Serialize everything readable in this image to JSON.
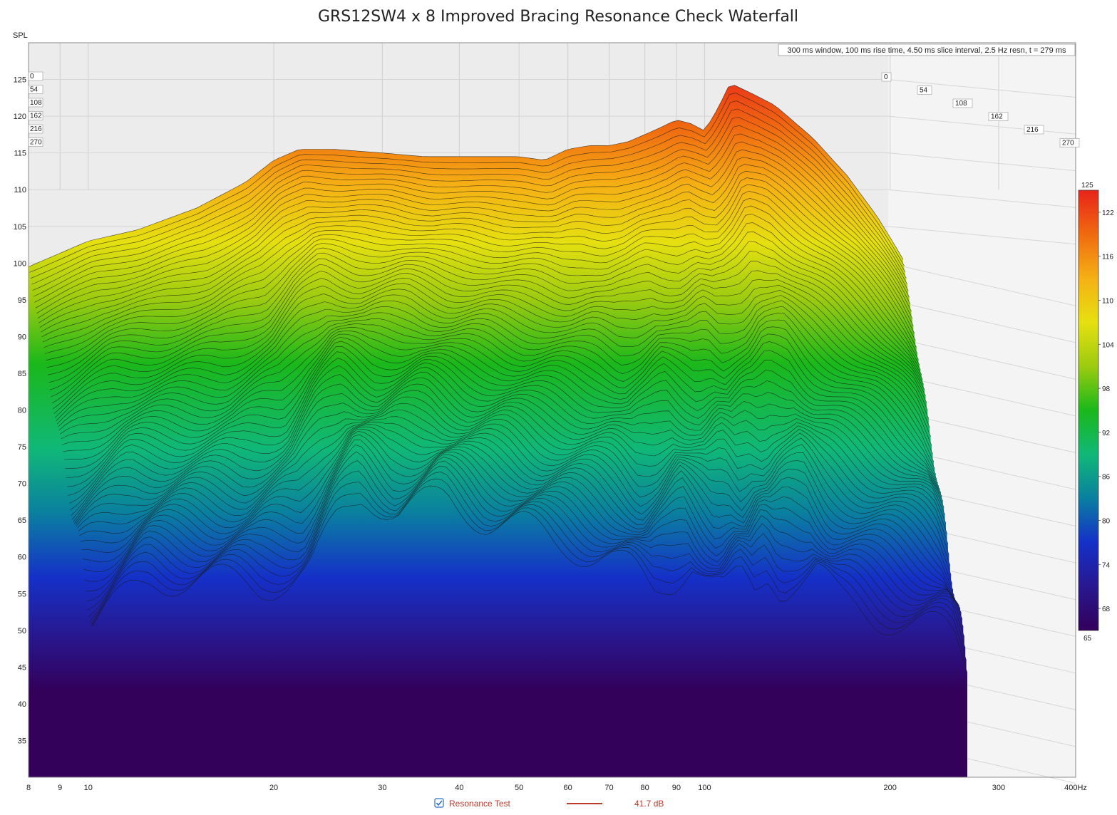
{
  "chart_data": {
    "type": "waterfall",
    "title": "GRS12SW4 x 8 Improved Bracing Resonance Check Waterfall",
    "ylabel": "SPL",
    "xunit": "Hz",
    "info_text": "300 ms window, 100 ms rise time, 4.50 ms slice interval, 2.5 Hz resn, t = 279 ms",
    "x_scale": "log",
    "xlim": [
      8,
      400
    ],
    "ylim": [
      30,
      130
    ],
    "x_ticks": [
      {
        "value": 8,
        "label": "8"
      },
      {
        "value": 9,
        "label": "9"
      },
      {
        "value": 10,
        "label": "10"
      },
      {
        "value": 20,
        "label": "20"
      },
      {
        "value": 30,
        "label": "30"
      },
      {
        "value": 40,
        "label": "40"
      },
      {
        "value": 50,
        "label": "50"
      },
      {
        "value": 60,
        "label": "60"
      },
      {
        "value": 70,
        "label": "70"
      },
      {
        "value": 80,
        "label": "80"
      },
      {
        "value": 90,
        "label": "90"
      },
      {
        "value": 100,
        "label": "100"
      },
      {
        "value": 200,
        "label": "200"
      },
      {
        "value": 300,
        "label": "300"
      },
      {
        "value": 400,
        "label": "400Hz"
      }
    ],
    "y_ticks": [
      {
        "value": 125,
        "label": "125"
      },
      {
        "value": 120,
        "label": "120"
      },
      {
        "value": 115,
        "label": "115"
      },
      {
        "value": 110,
        "label": "110"
      },
      {
        "value": 105,
        "label": "105"
      },
      {
        "value": 100,
        "label": "100"
      },
      {
        "value": 95,
        "label": "95"
      },
      {
        "value": 90,
        "label": "90"
      },
      {
        "value": 85,
        "label": "85"
      },
      {
        "value": 80,
        "label": "80"
      },
      {
        "value": 75,
        "label": "75"
      },
      {
        "value": 70,
        "label": "70"
      },
      {
        "value": 65,
        "label": "65"
      },
      {
        "value": 60,
        "label": "60"
      },
      {
        "value": 55,
        "label": "55"
      },
      {
        "value": 50,
        "label": "50"
      },
      {
        "value": 45,
        "label": "45"
      },
      {
        "value": 40,
        "label": "40"
      },
      {
        "value": 35,
        "label": "35"
      }
    ],
    "time_ticks_ms": [
      "0",
      "54",
      "108",
      "162",
      "216",
      "270"
    ],
    "colorbar": {
      "max_label": "125",
      "min_label": "65",
      "ticks": [
        "122",
        "116",
        "110",
        "104",
        "98",
        "92",
        "86",
        "80",
        "74",
        "68"
      ],
      "stops": [
        "#e8231a",
        "#f06a10",
        "#f5b014",
        "#e6e010",
        "#9ccb10",
        "#1ab81a",
        "#10b878",
        "#0a7fa0",
        "#1530c8",
        "#281890",
        "#33005a"
      ]
    },
    "series": [
      {
        "name": "Resonance Test",
        "value_label": "41.7 dB",
        "color": "#c0392b",
        "frequency_hz": [
          8,
          10,
          12,
          15,
          18,
          20,
          22,
          25,
          30,
          35,
          40,
          45,
          50,
          55,
          60,
          65,
          70,
          75,
          80,
          85,
          90,
          95,
          100,
          105,
          110,
          120,
          130,
          150,
          170,
          190,
          200,
          210
        ],
        "spl_first_slice_db": [
          99.5,
          103,
          104.5,
          107.5,
          111,
          114,
          115.5,
          115.5,
          115,
          114.5,
          114.5,
          114.5,
          114.5,
          114,
          115.5,
          116,
          116,
          116.5,
          117.5,
          118.5,
          119.5,
          119,
          118,
          121,
          124.5,
          123,
          121.5,
          117,
          112,
          106.5,
          103.5,
          100.5
        ],
        "spl_last_slice_db": [
          51,
          57,
          57,
          56,
          58,
          65,
          69,
          66,
          68,
          65,
          64,
          62,
          61,
          60,
          58,
          55,
          57,
          60,
          57,
          55,
          57,
          55,
          58,
          56,
          57,
          58,
          54,
          52,
          51,
          50,
          49,
          45
        ]
      }
    ]
  }
}
